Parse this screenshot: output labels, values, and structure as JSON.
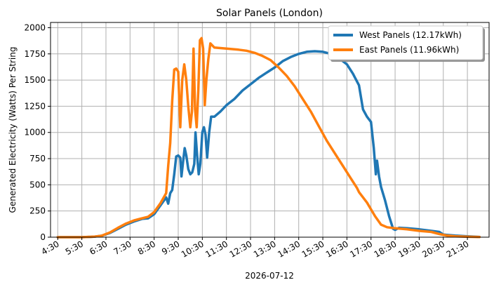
{
  "chart_data": {
    "type": "line",
    "title": "Solar Panels (London)",
    "xlabel": "2026-07-12",
    "ylabel": "Generated Electricity (Watts) Per String",
    "ylim": [
      0,
      2050
    ],
    "xlim": [
      "04:12",
      "22:24"
    ],
    "grid": true,
    "legend_position": "top-right",
    "x_ticks": [
      "4:30",
      "5:30",
      "6:30",
      "7:30",
      "8:30",
      "9:30",
      "10:30",
      "11:30",
      "12:30",
      "13:30",
      "14:30",
      "15:30",
      "16:30",
      "17:30",
      "18:30",
      "19:30",
      "20:30",
      "21:30"
    ],
    "y_ticks": [
      0,
      250,
      500,
      750,
      1000,
      1250,
      1500,
      1750,
      2000
    ],
    "series": [
      {
        "name": "West Panels (12.17kWh)",
        "color": "#1f77b4",
        "points": [
          [
            "04:30",
            0
          ],
          [
            "05:00",
            0
          ],
          [
            "05:30",
            0
          ],
          [
            "06:00",
            5
          ],
          [
            "06:20",
            15
          ],
          [
            "06:40",
            40
          ],
          [
            "07:00",
            80
          ],
          [
            "07:20",
            120
          ],
          [
            "07:40",
            150
          ],
          [
            "08:00",
            175
          ],
          [
            "08:15",
            180
          ],
          [
            "08:30",
            220
          ],
          [
            "08:45",
            300
          ],
          [
            "09:00",
            380
          ],
          [
            "09:05",
            320
          ],
          [
            "09:10",
            420
          ],
          [
            "09:15",
            450
          ],
          [
            "09:20",
            600
          ],
          [
            "09:25",
            770
          ],
          [
            "09:30",
            780
          ],
          [
            "09:35",
            760
          ],
          [
            "09:38",
            580
          ],
          [
            "09:42",
            720
          ],
          [
            "09:46",
            850
          ],
          [
            "09:50",
            780
          ],
          [
            "09:55",
            650
          ],
          [
            "10:00",
            600
          ],
          [
            "10:05",
            620
          ],
          [
            "10:10",
            700
          ],
          [
            "10:13",
            1000
          ],
          [
            "10:17",
            780
          ],
          [
            "10:21",
            600
          ],
          [
            "10:25",
            700
          ],
          [
            "10:30",
            1000
          ],
          [
            "10:34",
            1050
          ],
          [
            "10:38",
            980
          ],
          [
            "10:42",
            760
          ],
          [
            "10:47",
            1000
          ],
          [
            "10:52",
            1150
          ],
          [
            "11:00",
            1150
          ],
          [
            "11:15",
            1200
          ],
          [
            "11:30",
            1260
          ],
          [
            "11:50",
            1320
          ],
          [
            "12:10",
            1400
          ],
          [
            "12:30",
            1460
          ],
          [
            "12:50",
            1520
          ],
          [
            "13:10",
            1570
          ],
          [
            "13:30",
            1620
          ],
          [
            "13:50",
            1680
          ],
          [
            "14:10",
            1720
          ],
          [
            "14:30",
            1750
          ],
          [
            "14:50",
            1770
          ],
          [
            "15:10",
            1775
          ],
          [
            "15:30",
            1770
          ],
          [
            "15:50",
            1750
          ],
          [
            "16:10",
            1710
          ],
          [
            "16:30",
            1650
          ],
          [
            "16:45",
            1560
          ],
          [
            "17:00",
            1450
          ],
          [
            "17:10",
            1220
          ],
          [
            "17:20",
            1150
          ],
          [
            "17:30",
            1100
          ],
          [
            "17:37",
            850
          ],
          [
            "17:42",
            600
          ],
          [
            "17:45",
            730
          ],
          [
            "17:50",
            580
          ],
          [
            "17:55",
            480
          ],
          [
            "18:05",
            350
          ],
          [
            "18:15",
            200
          ],
          [
            "18:25",
            80
          ],
          [
            "18:30",
            70
          ],
          [
            "18:40",
            90
          ],
          [
            "19:00",
            85
          ],
          [
            "19:30",
            75
          ],
          [
            "20:00",
            60
          ],
          [
            "20:20",
            50
          ],
          [
            "20:30",
            25
          ],
          [
            "21:00",
            15
          ],
          [
            "21:30",
            8
          ],
          [
            "22:00",
            3
          ]
        ]
      },
      {
        "name": "East Panels (11.96kWh)",
        "color": "#ff7f0e",
        "points": [
          [
            "04:30",
            0
          ],
          [
            "05:00",
            0
          ],
          [
            "05:30",
            0
          ],
          [
            "06:00",
            5
          ],
          [
            "06:20",
            15
          ],
          [
            "06:40",
            45
          ],
          [
            "07:00",
            90
          ],
          [
            "07:20",
            130
          ],
          [
            "07:40",
            160
          ],
          [
            "08:00",
            180
          ],
          [
            "08:15",
            195
          ],
          [
            "08:30",
            240
          ],
          [
            "08:45",
            320
          ],
          [
            "09:00",
            420
          ],
          [
            "09:05",
            680
          ],
          [
            "09:10",
            900
          ],
          [
            "09:15",
            1300
          ],
          [
            "09:20",
            1600
          ],
          [
            "09:25",
            1610
          ],
          [
            "09:30",
            1580
          ],
          [
            "09:35",
            1050
          ],
          [
            "09:40",
            1500
          ],
          [
            "09:45",
            1650
          ],
          [
            "09:50",
            1500
          ],
          [
            "09:55",
            1250
          ],
          [
            "10:00",
            1050
          ],
          [
            "10:04",
            1200
          ],
          [
            "10:08",
            1800
          ],
          [
            "10:12",
            1220
          ],
          [
            "10:16",
            1050
          ],
          [
            "10:20",
            1400
          ],
          [
            "10:24",
            1880
          ],
          [
            "10:28",
            1900
          ],
          [
            "10:32",
            1800
          ],
          [
            "10:36",
            1260
          ],
          [
            "10:40",
            1500
          ],
          [
            "10:45",
            1700
          ],
          [
            "10:50",
            1850
          ],
          [
            "11:00",
            1810
          ],
          [
            "11:30",
            1800
          ],
          [
            "12:00",
            1790
          ],
          [
            "12:20",
            1780
          ],
          [
            "12:40",
            1760
          ],
          [
            "13:00",
            1730
          ],
          [
            "13:20",
            1690
          ],
          [
            "13:40",
            1620
          ],
          [
            "14:00",
            1540
          ],
          [
            "14:20",
            1440
          ],
          [
            "14:40",
            1320
          ],
          [
            "15:00",
            1200
          ],
          [
            "15:20",
            1060
          ],
          [
            "15:40",
            920
          ],
          [
            "16:00",
            800
          ],
          [
            "16:20",
            680
          ],
          [
            "16:40",
            560
          ],
          [
            "16:55",
            470
          ],
          [
            "17:00",
            430
          ],
          [
            "17:20",
            330
          ],
          [
            "17:40",
            200
          ],
          [
            "17:55",
            120
          ],
          [
            "18:10",
            95
          ],
          [
            "18:30",
            85
          ],
          [
            "19:00",
            75
          ],
          [
            "19:30",
            60
          ],
          [
            "20:00",
            50
          ],
          [
            "20:20",
            30
          ],
          [
            "20:40",
            15
          ],
          [
            "21:00",
            8
          ],
          [
            "21:30",
            4
          ],
          [
            "22:00",
            2
          ]
        ]
      }
    ]
  }
}
